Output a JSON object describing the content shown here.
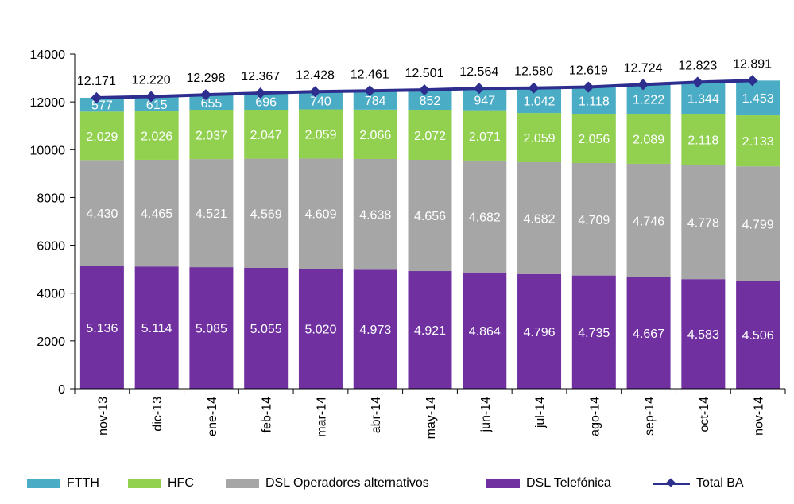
{
  "chart_data": {
    "type": "bar",
    "stacked": true,
    "categories": [
      "nov-13",
      "dic-13",
      "ene-14",
      "feb-14",
      "mar-14",
      "abr-14",
      "may-14",
      "jun-14",
      "jul-14",
      "ago-14",
      "sep-14",
      "oct-14",
      "nov-14"
    ],
    "ylim": [
      0,
      14000
    ],
    "yticks": [
      "0",
      "2000",
      "4000",
      "6000",
      "8000",
      "10000",
      "12000",
      "14000"
    ],
    "grid": false,
    "legend_position": "bottom",
    "series": [
      {
        "name": "DSL Telefónica",
        "color": "#7030a0",
        "values": [
          5136,
          5114,
          5085,
          5055,
          5020,
          4973,
          4921,
          4864,
          4796,
          4735,
          4667,
          4583,
          4506
        ],
        "labels": [
          "5.136",
          "5.114",
          "5.085",
          "5.055",
          "5.020",
          "4.973",
          "4.921",
          "4.864",
          "4.796",
          "4.735",
          "4.667",
          "4.583",
          "4.506"
        ]
      },
      {
        "name": "DSL Operadores alternativos",
        "color": "#a6a6a6",
        "values": [
          4430,
          4465,
          4521,
          4569,
          4609,
          4638,
          4656,
          4682,
          4682,
          4709,
          4746,
          4778,
          4799
        ],
        "labels": [
          "4.430",
          "4.465",
          "4.521",
          "4.569",
          "4.609",
          "4.638",
          "4.656",
          "4.682",
          "4.682",
          "4.709",
          "4.746",
          "4.778",
          "4.799"
        ]
      },
      {
        "name": "HFC",
        "color": "#92d050",
        "values": [
          2029,
          2026,
          2037,
          2047,
          2059,
          2066,
          2072,
          2071,
          2059,
          2056,
          2089,
          2118,
          2133
        ],
        "labels": [
          "2.029",
          "2.026",
          "2.037",
          "2.047",
          "2.059",
          "2.066",
          "2.072",
          "2.071",
          "2.059",
          "2.056",
          "2.089",
          "2.118",
          "2.133"
        ]
      },
      {
        "name": "FTTH",
        "color": "#4bacc6",
        "values": [
          577,
          615,
          655,
          696,
          740,
          784,
          852,
          947,
          1042,
          1118,
          1222,
          1344,
          1453
        ],
        "labels": [
          "577",
          "615",
          "655",
          "696",
          "740",
          "784",
          "852",
          "947",
          "1.042",
          "1.118",
          "1.222",
          "1.344",
          "1.453"
        ]
      }
    ],
    "line": {
      "name": "Total BA",
      "color": "#2e2e8f",
      "values": [
        12171,
        12220,
        12298,
        12367,
        12428,
        12461,
        12501,
        12564,
        12580,
        12619,
        12724,
        12823,
        12891
      ],
      "labels": [
        "12.171",
        "12.220",
        "12.298",
        "12.367",
        "12.428",
        "12.461",
        "12.501",
        "12.564",
        "12.580",
        "12.619",
        "12.724",
        "12.823",
        "12.891"
      ]
    }
  },
  "legend": {
    "ftth": "FTTH",
    "hfc": "HFC",
    "dsl_alt": "DSL Operadores alternativos",
    "dsl_tel": "DSL Telefónica",
    "total": "Total BA"
  },
  "colors": {
    "ftth": "#4bacc6",
    "hfc": "#92d050",
    "dsl_alt": "#a6a6a6",
    "dsl_tel": "#7030a0",
    "total": "#2e2e8f"
  }
}
